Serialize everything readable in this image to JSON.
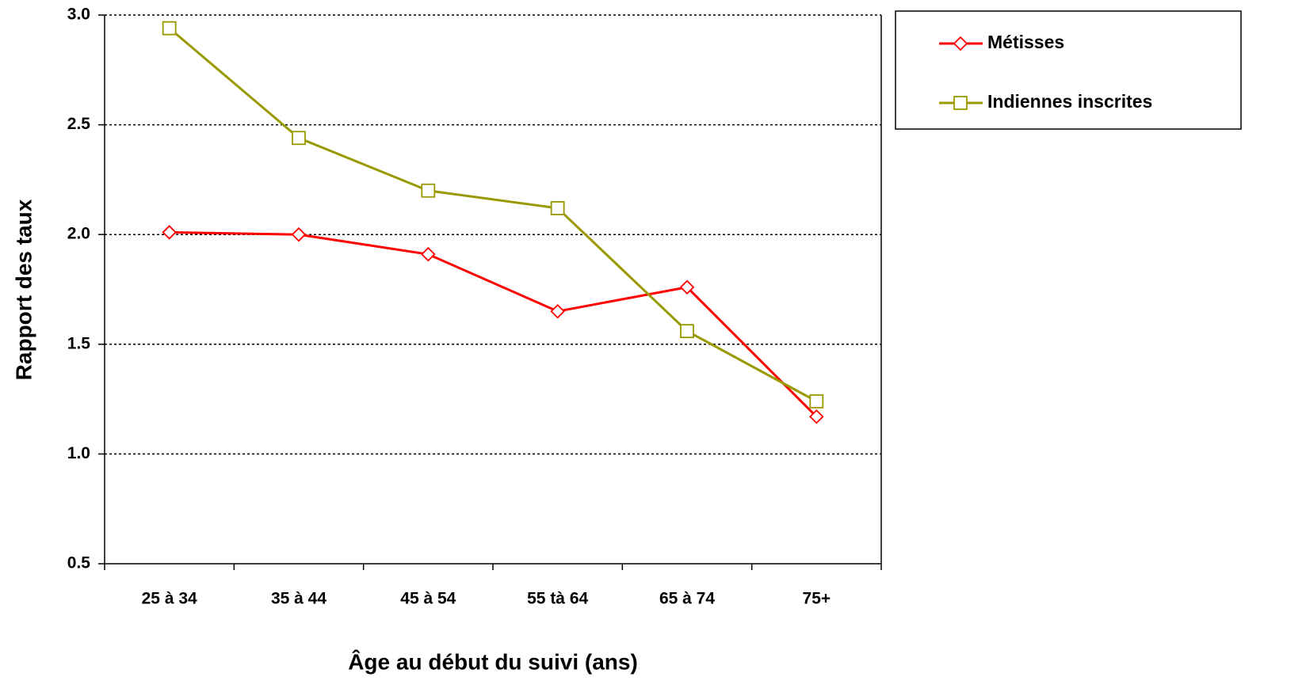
{
  "chart_data": {
    "type": "line",
    "x_label": "Âge au début du suivi (ans)",
    "y_label": "Rapport des taux",
    "categories": [
      "25 à 34",
      "35 à 44",
      "45 à 54",
      "55 tà 64",
      "65 à 74",
      "75+"
    ],
    "series": [
      {
        "name": "Métisses",
        "color": "#ff0000",
        "marker": "diamond",
        "values": [
          2.01,
          2.0,
          1.91,
          1.65,
          1.76,
          1.17
        ]
      },
      {
        "name": "Indiennes inscrites",
        "color": "#999900",
        "marker": "square",
        "values": [
          2.94,
          2.44,
          2.2,
          2.12,
          1.56,
          1.24
        ]
      }
    ],
    "ylim": [
      0.5,
      3.0
    ],
    "yticks": [
      {
        "value": 0.5,
        "label": "0.5"
      },
      {
        "value": 1,
        "label": "1.0"
      },
      1.5,
      {
        "value": 2,
        "label": "2.0"
      },
      2.5,
      {
        "value": 3,
        "label": "3.0"
      }
    ],
    "grid": true,
    "legend": "right"
  }
}
